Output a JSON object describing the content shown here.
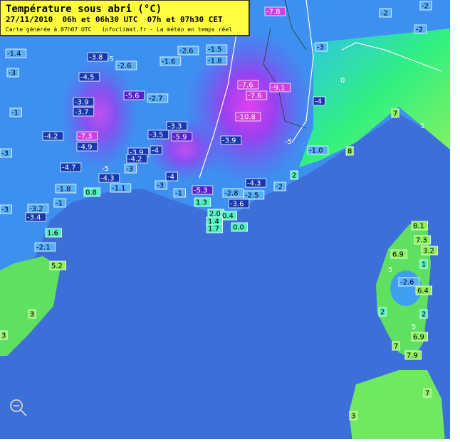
{
  "header": {
    "title": "Température sous abri (°C)",
    "date": "27/11/2010  06h et 06h30 UTC  07h et 07h30 CET",
    "note": "Carte générée à 07h07 UTC   infoclimat.fr - La météo en temps réel"
  },
  "stations": [
    "-7.8",
    "-2",
    "-2",
    "-2",
    "-3",
    "-1.4",
    "-3.8",
    "-2.6",
    "-2.6",
    "-1.5",
    "-1.6",
    "-1.8",
    "-3",
    "-4.5",
    "-7.6",
    "-9.1",
    "-7.6",
    "-5.6",
    "-2.7",
    "-4",
    "-3.9",
    "-3.7",
    "-1",
    "-10.8",
    "7",
    "-3.3",
    "-4.2",
    "-7.3",
    "-3.5",
    "-5.9",
    "-3.9",
    "-4.9",
    "-3",
    "-1.0",
    "8",
    "-3.9",
    "-4",
    "-4.2",
    "-4.7",
    "-3",
    "-4",
    "-4.3",
    "2",
    "-4.3",
    "-1.8",
    "0.8",
    "-1.1",
    "-3",
    "-5.3",
    "-1",
    "-2.8",
    "-2.5",
    "-2",
    "-3",
    "-1",
    "-3.2",
    "-3.4",
    "1.3",
    "-3.6",
    "2.0",
    "0.4",
    "1.4",
    "1.7",
    "0.0",
    "8.1",
    "1.6",
    "7.3",
    "-2.1",
    "3.2",
    "6.9",
    "1",
    "5.2",
    "-2.6",
    "6.4",
    "3",
    "2",
    "2",
    "6.9",
    "3",
    "7",
    "7.9",
    "7",
    "3"
  ],
  "isolines": [
    "-5",
    "-5",
    "-5",
    "0",
    "5",
    "5",
    "5"
  ]
}
